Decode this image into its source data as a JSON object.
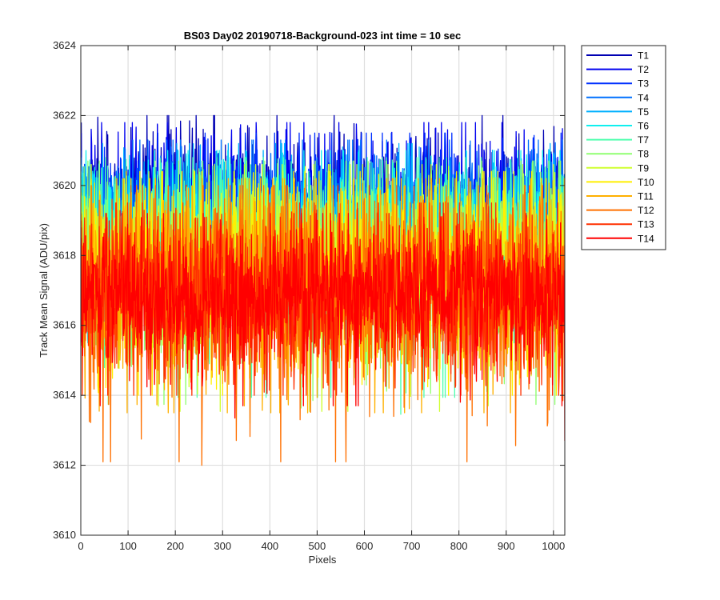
{
  "chart_data": {
    "type": "line",
    "title": "BS03 Day02 20190718-Background-023 int time = 10 sec",
    "xlabel": "Pixels",
    "ylabel": "Track Mean Signal (ADU/pix)",
    "xlim": [
      0,
      1024
    ],
    "ylim": [
      3610,
      3624
    ],
    "x_ticks": [
      0,
      100,
      200,
      300,
      400,
      500,
      600,
      700,
      800,
      900,
      1000
    ],
    "y_ticks": [
      3610,
      3612,
      3614,
      3616,
      3618,
      3620,
      3622,
      3624
    ],
    "grid": true,
    "legend_position": "outside-top-right",
    "x_range_of_series": [
      1,
      1024
    ],
    "series": [
      {
        "name": "T1",
        "color": "#0000b3",
        "mean": 3619.5,
        "spread": 1.0,
        "min": 3617.5,
        "max": 3622.0,
        "start": 3621.8,
        "end": 3619.5
      },
      {
        "name": "T2",
        "color": "#0000ef",
        "mean": 3619.3,
        "spread": 1.0,
        "min": 3617.3,
        "max": 3621.8,
        "start": 3621.5,
        "end": 3619.3
      },
      {
        "name": "T3",
        "color": "#0030ff",
        "mean": 3619.1,
        "spread": 1.0,
        "min": 3617.0,
        "max": 3621.5,
        "start": 3621.0,
        "end": 3619.1
      },
      {
        "name": "T4",
        "color": "#0070ff",
        "mean": 3618.9,
        "spread": 1.0,
        "min": 3616.8,
        "max": 3621.3,
        "start": 3620.8,
        "end": 3618.9
      },
      {
        "name": "T5",
        "color": "#00b0ff",
        "mean": 3618.7,
        "spread": 1.1,
        "min": 3616.5,
        "max": 3621.2,
        "start": 3620.6,
        "end": 3618.7
      },
      {
        "name": "T6",
        "color": "#10efef",
        "mean": 3618.4,
        "spread": 1.2,
        "min": 3615.5,
        "max": 3621.0,
        "start": 3620.4,
        "end": 3618.4
      },
      {
        "name": "T7",
        "color": "#50ffaf",
        "mean": 3618.1,
        "spread": 1.3,
        "min": 3611.9,
        "max": 3620.8,
        "start": 3620.2,
        "end": 3618.1
      },
      {
        "name": "T8",
        "color": "#8fff70",
        "mean": 3617.9,
        "spread": 1.3,
        "min": 3613.5,
        "max": 3620.7,
        "start": 3620.0,
        "end": 3617.9
      },
      {
        "name": "T9",
        "color": "#cfff30",
        "mean": 3617.7,
        "spread": 1.3,
        "min": 3613.2,
        "max": 3620.6,
        "start": 3619.8,
        "end": 3617.7
      },
      {
        "name": "T10",
        "color": "#ffef00",
        "mean": 3617.5,
        "spread": 1.3,
        "min": 3614.0,
        "max": 3620.4,
        "start": 3619.5,
        "end": 3617.5
      },
      {
        "name": "T11",
        "color": "#ffb000",
        "mean": 3617.3,
        "spread": 1.4,
        "min": 3613.5,
        "max": 3620.2,
        "start": 3619.2,
        "end": 3617.3
      },
      {
        "name": "T12",
        "color": "#ff7000",
        "mean": 3616.9,
        "spread": 1.5,
        "min": 3612.0,
        "max": 3620.0,
        "start": 3619.0,
        "end": 3616.9
      },
      {
        "name": "T13",
        "color": "#ff3000",
        "mean": 3616.8,
        "spread": 1.2,
        "min": 3614.0,
        "max": 3619.5,
        "start": 3618.8,
        "end": 3616.8
      },
      {
        "name": "T14",
        "color": "#ff0000",
        "mean": 3616.9,
        "spread": 1.0,
        "min": 3612.7,
        "max": 3619.2,
        "start": 3618.5,
        "end": 3612.7
      }
    ]
  }
}
